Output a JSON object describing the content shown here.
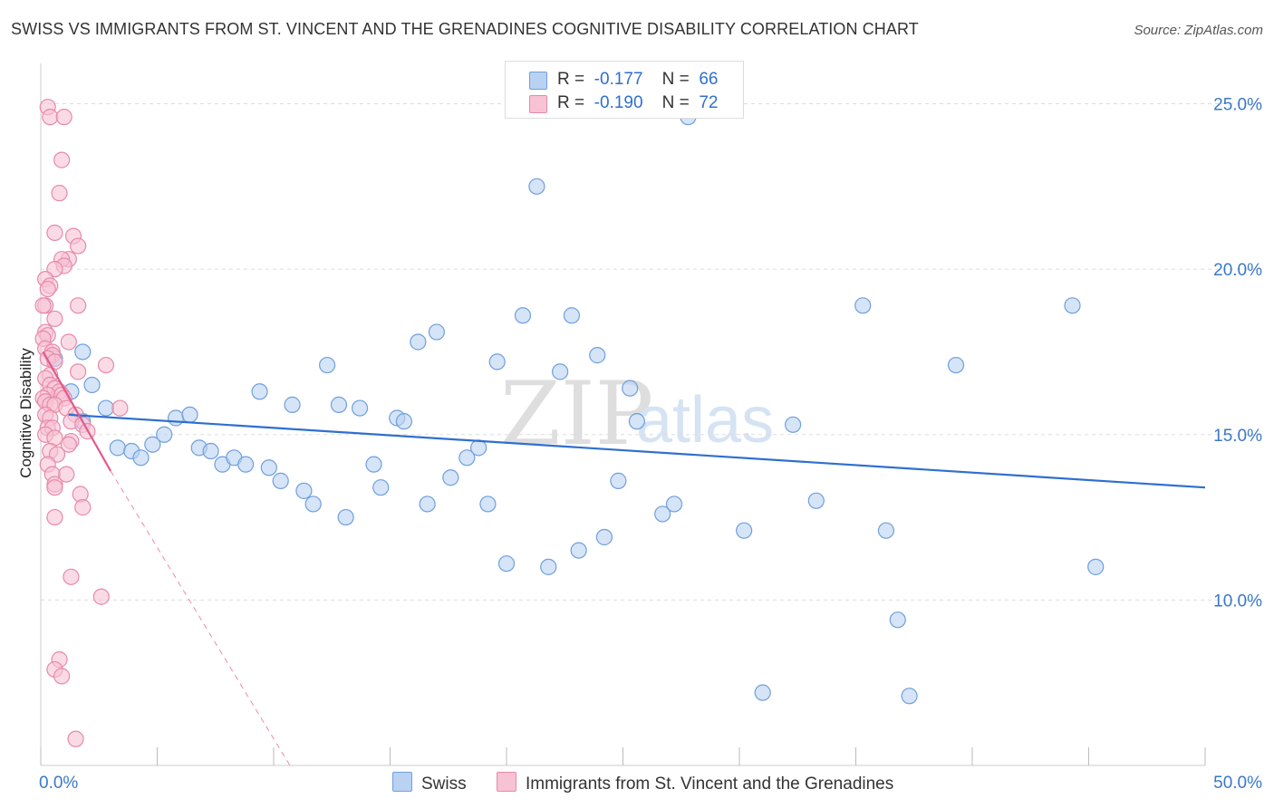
{
  "title": "SWISS VS IMMIGRANTS FROM ST. VINCENT AND THE GRENADINES COGNITIVE DISABILITY CORRELATION CHART",
  "source": "Source: ZipAtlas.com",
  "watermark": {
    "zip": "ZIP",
    "atlas": "atlas"
  },
  "legend": {
    "rows": [
      {
        "r_label": "R =",
        "r_value": "-0.177",
        "n_label": "N =",
        "n_value": "66"
      },
      {
        "r_label": "R =",
        "r_value": "-0.190",
        "n_label": "N =",
        "n_value": "72"
      }
    ]
  },
  "colors": {
    "swiss_fill": "#b9d2f2",
    "swiss_stroke": "#6f9fdd",
    "swiss_line": "#2f6fd0",
    "svg_fill": "#f7c3d4",
    "svg_stroke": "#e889a8",
    "svg_line": "#e05a8a",
    "grid": "#dddddd",
    "tick_text": "#3a78c9"
  },
  "chart_data": {
    "type": "scatter",
    "title": "SWISS VS IMMIGRANTS FROM ST. VINCENT AND THE GRENADINES COGNITIVE DISABILITY CORRELATION CHART",
    "xlabel": "",
    "ylabel": "Cognitive Disability",
    "xlim": [
      0,
      50
    ],
    "ylim": [
      5,
      26
    ],
    "x_tick_labels": [
      "0.0%",
      "50.0%"
    ],
    "y_ticks": [
      10,
      15,
      20,
      25
    ],
    "y_tick_labels": [
      "10.0%",
      "15.0%",
      "20.0%",
      "25.0%"
    ],
    "grid": true,
    "series": [
      {
        "name": "Swiss",
        "r": -0.177,
        "n": 66,
        "trend": {
          "x0": 1.2,
          "y0": 15.6,
          "x1": 50,
          "y1": 13.4
        },
        "points": [
          [
            0.6,
            17.3
          ],
          [
            1.3,
            16.3
          ],
          [
            2.2,
            16.5
          ],
          [
            2.8,
            15.8
          ],
          [
            1.8,
            15.4
          ],
          [
            3.3,
            14.6
          ],
          [
            3.9,
            14.5
          ],
          [
            4.3,
            14.3
          ],
          [
            4.8,
            14.7
          ],
          [
            5.3,
            15.0
          ],
          [
            5.8,
            15.5
          ],
          [
            6.4,
            15.6
          ],
          [
            6.8,
            14.6
          ],
          [
            7.3,
            14.5
          ],
          [
            7.8,
            14.1
          ],
          [
            8.3,
            14.3
          ],
          [
            8.8,
            14.1
          ],
          [
            9.4,
            16.3
          ],
          [
            9.8,
            14.0
          ],
          [
            10.3,
            13.6
          ],
          [
            10.8,
            15.9
          ],
          [
            11.3,
            13.3
          ],
          [
            11.7,
            12.9
          ],
          [
            12.3,
            17.1
          ],
          [
            12.8,
            15.9
          ],
          [
            13.1,
            12.5
          ],
          [
            13.7,
            15.8
          ],
          [
            14.3,
            14.1
          ],
          [
            14.6,
            13.4
          ],
          [
            15.3,
            15.5
          ],
          [
            15.6,
            15.4
          ],
          [
            16.2,
            17.8
          ],
          [
            16.6,
            12.9
          ],
          [
            17.0,
            18.1
          ],
          [
            17.6,
            13.7
          ],
          [
            18.3,
            14.3
          ],
          [
            18.8,
            14.6
          ],
          [
            19.2,
            12.9
          ],
          [
            19.6,
            17.2
          ],
          [
            20.0,
            11.1
          ],
          [
            20.7,
            18.6
          ],
          [
            21.3,
            22.5
          ],
          [
            21.8,
            11.0
          ],
          [
            22.3,
            16.9
          ],
          [
            22.8,
            18.6
          ],
          [
            23.1,
            11.5
          ],
          [
            23.9,
            17.4
          ],
          [
            24.2,
            11.9
          ],
          [
            24.8,
            13.6
          ],
          [
            25.3,
            16.4
          ],
          [
            25.6,
            15.4
          ],
          [
            26.7,
            12.6
          ],
          [
            27.2,
            12.9
          ],
          [
            27.8,
            24.6
          ],
          [
            30.2,
            12.1
          ],
          [
            31.0,
            7.2
          ],
          [
            32.3,
            15.3
          ],
          [
            33.3,
            13.0
          ],
          [
            35.3,
            18.9
          ],
          [
            36.3,
            12.1
          ],
          [
            36.8,
            9.4
          ],
          [
            37.3,
            7.1
          ],
          [
            39.3,
            17.1
          ],
          [
            44.3,
            18.9
          ],
          [
            45.3,
            11.0
          ],
          [
            1.8,
            17.5
          ]
        ]
      },
      {
        "name": "Immigrants from St. Vincent and the Grenadines",
        "r": -0.19,
        "n": 72,
        "trend": {
          "x0": 0.1,
          "y0": 17.5,
          "x1": 3.0,
          "y1": 13.9
        },
        "trend_extension": {
          "x0": 3.0,
          "y0": 13.9,
          "x1": 10.7,
          "y1": 5.0
        },
        "points": [
          [
            0.3,
            24.9
          ],
          [
            0.4,
            24.6
          ],
          [
            1.0,
            24.6
          ],
          [
            0.9,
            23.3
          ],
          [
            0.8,
            22.3
          ],
          [
            0.6,
            21.1
          ],
          [
            1.4,
            21.0
          ],
          [
            1.6,
            20.7
          ],
          [
            1.2,
            20.3
          ],
          [
            0.9,
            20.3
          ],
          [
            1.0,
            20.1
          ],
          [
            0.6,
            20.0
          ],
          [
            0.2,
            19.7
          ],
          [
            0.4,
            19.5
          ],
          [
            0.3,
            19.4
          ],
          [
            1.6,
            18.9
          ],
          [
            0.2,
            18.9
          ],
          [
            0.1,
            18.9
          ],
          [
            0.6,
            18.5
          ],
          [
            0.2,
            18.1
          ],
          [
            0.3,
            18.0
          ],
          [
            0.1,
            17.9
          ],
          [
            1.2,
            17.8
          ],
          [
            0.2,
            17.6
          ],
          [
            0.5,
            17.5
          ],
          [
            0.5,
            17.4
          ],
          [
            0.3,
            17.3
          ],
          [
            0.6,
            17.2
          ],
          [
            2.8,
            17.1
          ],
          [
            1.6,
            16.9
          ],
          [
            0.4,
            16.8
          ],
          [
            0.2,
            16.7
          ],
          [
            0.4,
            16.5
          ],
          [
            0.6,
            16.4
          ],
          [
            0.8,
            16.3
          ],
          [
            0.3,
            16.2
          ],
          [
            0.9,
            16.2
          ],
          [
            0.1,
            16.1
          ],
          [
            1.0,
            16.1
          ],
          [
            0.2,
            16.0
          ],
          [
            0.4,
            15.9
          ],
          [
            0.6,
            15.9
          ],
          [
            1.1,
            15.8
          ],
          [
            3.4,
            15.8
          ],
          [
            1.5,
            15.6
          ],
          [
            0.2,
            15.6
          ],
          [
            0.4,
            15.5
          ],
          [
            1.3,
            15.4
          ],
          [
            1.8,
            15.3
          ],
          [
            0.3,
            15.2
          ],
          [
            0.5,
            15.2
          ],
          [
            2.0,
            15.1
          ],
          [
            0.2,
            15.0
          ],
          [
            0.6,
            14.9
          ],
          [
            1.3,
            14.8
          ],
          [
            1.2,
            14.7
          ],
          [
            0.4,
            14.5
          ],
          [
            0.7,
            14.4
          ],
          [
            0.3,
            14.1
          ],
          [
            0.5,
            13.8
          ],
          [
            1.1,
            13.8
          ],
          [
            0.6,
            13.5
          ],
          [
            0.6,
            13.4
          ],
          [
            1.7,
            13.2
          ],
          [
            1.8,
            12.8
          ],
          [
            0.6,
            12.5
          ],
          [
            1.3,
            10.7
          ],
          [
            2.6,
            10.1
          ],
          [
            0.8,
            8.2
          ],
          [
            0.6,
            7.9
          ],
          [
            0.9,
            7.7
          ],
          [
            1.5,
            5.8
          ]
        ]
      }
    ]
  },
  "bottom_legend": [
    {
      "label": "Swiss"
    },
    {
      "label": "Immigrants from St. Vincent and the Grenadines"
    }
  ]
}
